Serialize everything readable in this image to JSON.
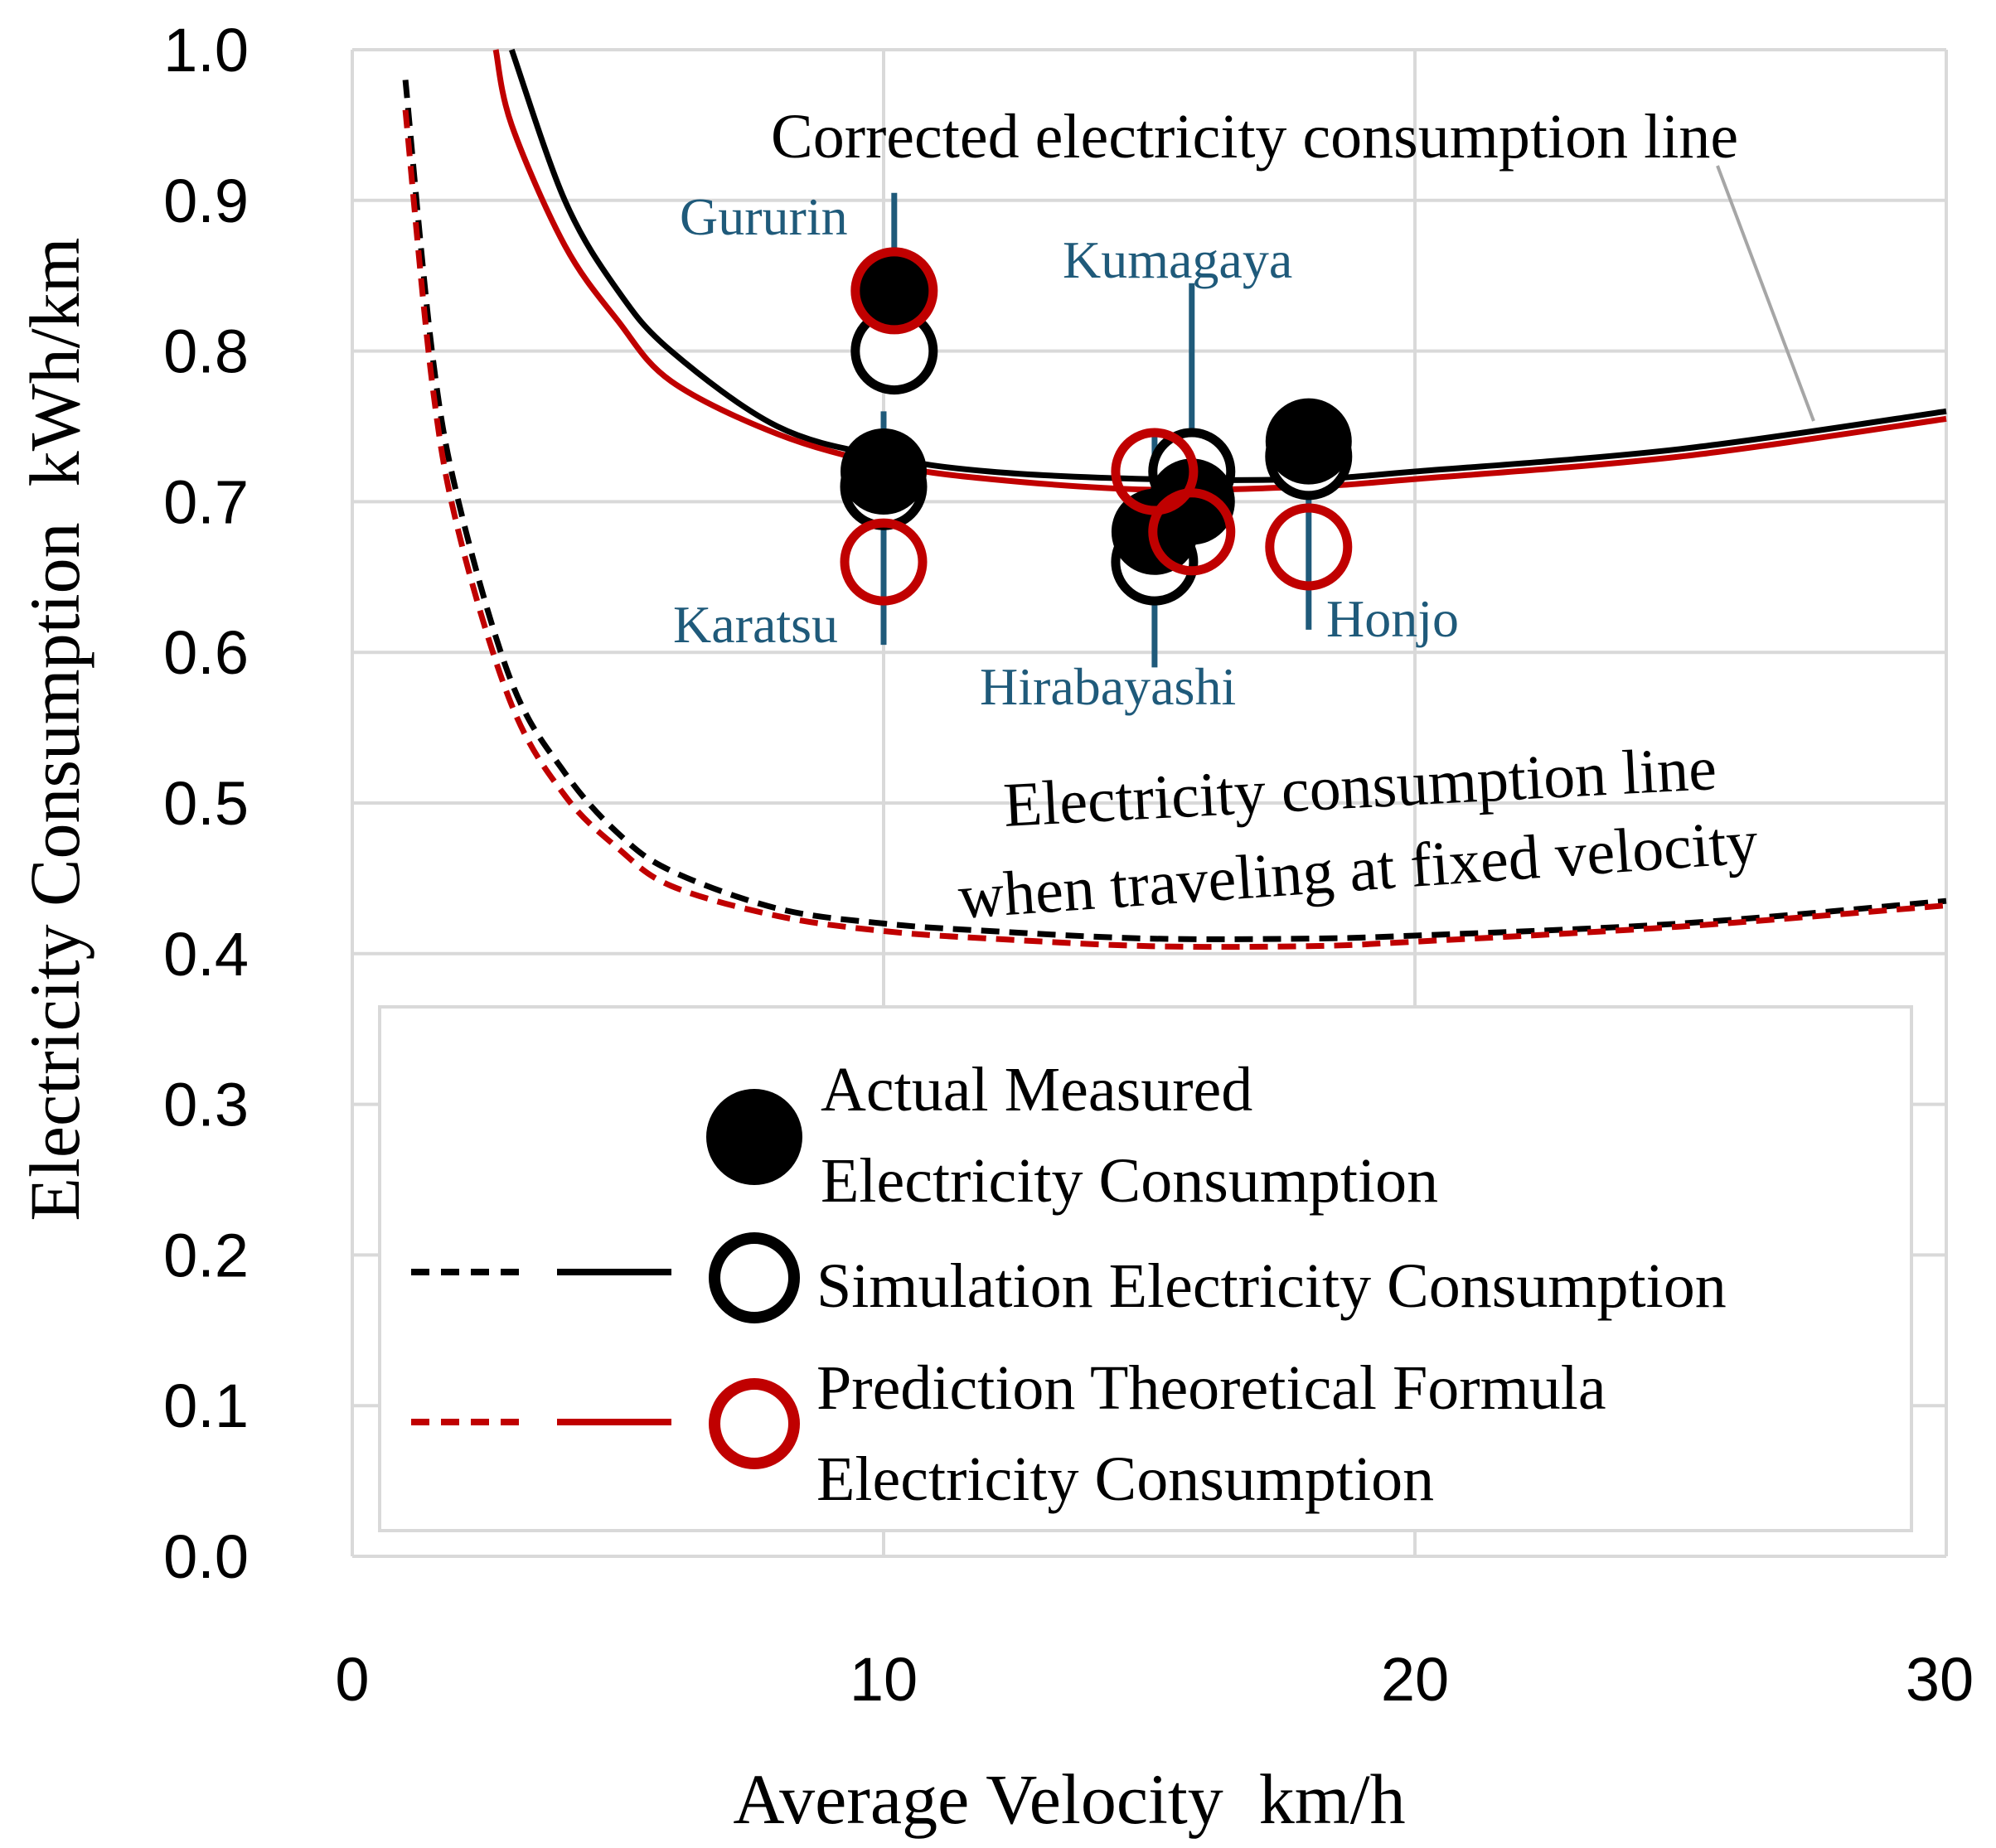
{
  "chart_data": {
    "type": "scatter",
    "xlabel": "Average Velocity  km/h",
    "ylabel": "Electricity Consumption  kWh/km",
    "xlim": [
      0,
      30
    ],
    "ylim": [
      0,
      1.0
    ],
    "x_ticks": [
      "0",
      "10",
      "20",
      "30"
    ],
    "y_ticks": [
      "0.0",
      "0.1",
      "0.2",
      "0.3",
      "0.4",
      "0.5",
      "0.6",
      "0.7",
      "0.8",
      "0.9",
      "1.0"
    ],
    "grid": true,
    "colors": {
      "actual": "#000000",
      "simulation": "#000000",
      "prediction": "#c00000",
      "route_label": "#1f5a7a",
      "grid": "#d9d9d9",
      "annotation_leader": "#a6a6a6"
    },
    "series": [
      {
        "name": "Actual Measured Electricity Consumption",
        "marker": "filled-circle",
        "points": [
          {
            "route": "Gururin",
            "x": 10.2,
            "y": 0.84
          },
          {
            "route": "Karatsu",
            "x": 10.0,
            "y": 0.72
          },
          {
            "route": "Hirabayashi",
            "x": 15.1,
            "y": 0.68
          },
          {
            "route": "Kumagaya",
            "x": 15.8,
            "y": 0.7
          },
          {
            "route": "Honjo",
            "x": 18.0,
            "y": 0.74
          }
        ]
      },
      {
        "name": "Simulation Electricity Consumption",
        "marker": "open-circle",
        "points": [
          {
            "route": "Gururin",
            "x": 10.2,
            "y": 0.8
          },
          {
            "route": "Karatsu",
            "x": 10.0,
            "y": 0.71
          },
          {
            "route": "Hirabayashi",
            "x": 15.1,
            "y": 0.66
          },
          {
            "route": "Kumagaya",
            "x": 15.8,
            "y": 0.72
          },
          {
            "route": "Honjo",
            "x": 18.0,
            "y": 0.73
          }
        ]
      },
      {
        "name": "Prediction Theoretical Formula Electricity Consumption",
        "marker": "open-circle-red",
        "points": [
          {
            "route": "Gururin",
            "x": 10.2,
            "y": 0.84
          },
          {
            "route": "Karatsu",
            "x": 10.0,
            "y": 0.66
          },
          {
            "route": "Hirabayashi",
            "x": 15.1,
            "y": 0.72
          },
          {
            "route": "Kumagaya",
            "x": 15.8,
            "y": 0.68
          },
          {
            "route": "Honjo",
            "x": 18.0,
            "y": 0.67
          }
        ]
      }
    ],
    "curves": [
      {
        "name": "Corrected electricity consumption line (simulation)",
        "style": "solid",
        "color": "black",
        "x": [
          3.0,
          4.0,
          5.0,
          6.0,
          8.0,
          10.0,
          12.0,
          15.0,
          18.0,
          20.0,
          25.0,
          30.0
        ],
        "y": [
          1.0,
          0.9,
          0.84,
          0.8,
          0.75,
          0.73,
          0.72,
          0.715,
          0.715,
          0.72,
          0.735,
          0.76
        ]
      },
      {
        "name": "Corrected electricity consumption line (prediction)",
        "style": "solid",
        "color": "red",
        "x": [
          2.7,
          3.0,
          4.0,
          5.0,
          6.0,
          8.0,
          10.0,
          12.0,
          15.0,
          18.0,
          20.0,
          25.0,
          30.0
        ],
        "y": [
          1.0,
          0.95,
          0.87,
          0.82,
          0.78,
          0.745,
          0.725,
          0.715,
          0.708,
          0.71,
          0.715,
          0.73,
          0.755
        ]
      },
      {
        "name": "Fixed velocity line (simulation)",
        "style": "dashed",
        "color": "black",
        "x": [
          1.0,
          1.5,
          2.0,
          3.0,
          4.0,
          5.0,
          6.0,
          8.0,
          10.0,
          12.0,
          15.0,
          18.0,
          20.0,
          25.0,
          30.0
        ],
        "y": [
          0.98,
          0.8,
          0.7,
          0.58,
          0.52,
          0.48,
          0.455,
          0.43,
          0.42,
          0.415,
          0.41,
          0.41,
          0.412,
          0.42,
          0.435
        ]
      },
      {
        "name": "Fixed velocity line (prediction)",
        "style": "dashed",
        "color": "red",
        "x": [
          1.0,
          1.5,
          2.0,
          3.0,
          4.0,
          5.0,
          6.0,
          8.0,
          10.0,
          12.0,
          15.0,
          18.0,
          20.0,
          25.0,
          30.0
        ],
        "y": [
          0.96,
          0.78,
          0.68,
          0.565,
          0.505,
          0.47,
          0.445,
          0.425,
          0.415,
          0.41,
          0.405,
          0.405,
          0.408,
          0.418,
          0.432
        ]
      }
    ],
    "route_labels": [
      "Gururin",
      "Kumagaya",
      "Karatsu",
      "Hirabayashi",
      "Honjo"
    ],
    "annotations": {
      "corrected_line": "Corrected electricity consumption line",
      "fixed_line_1": "Electricity consumption line",
      "fixed_line_2": "when traveling at fixed velocity"
    },
    "legend": {
      "placement": "bottom-center",
      "actual_1": "Actual Measured",
      "actual_2": "Electricity Consumption",
      "simulation": "Simulation Electricity Consumption",
      "prediction_1": "Prediction Theoretical Formula",
      "prediction_2": "Electricity Consumption"
    }
  }
}
